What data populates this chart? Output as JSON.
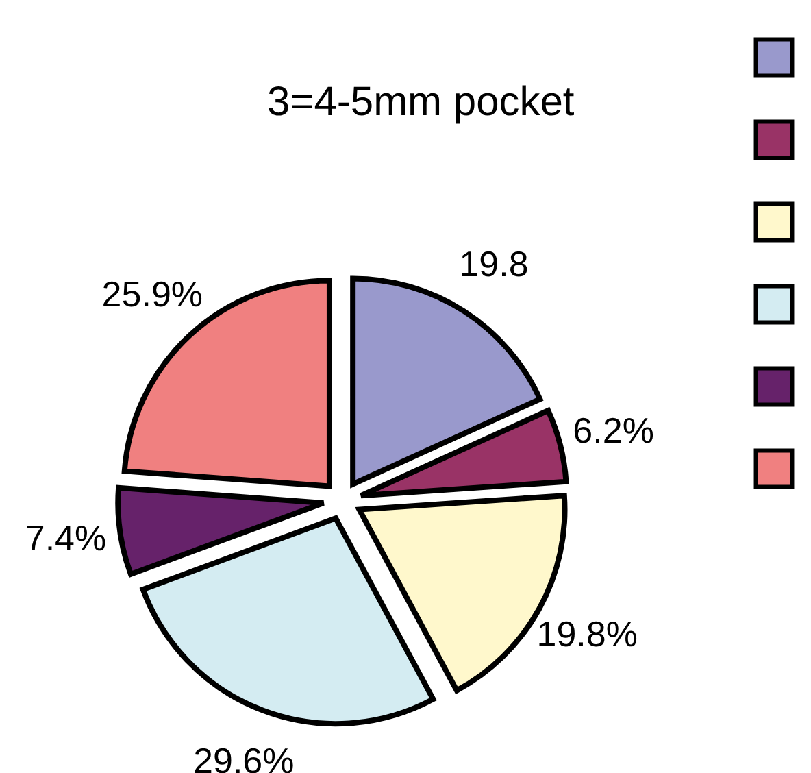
{
  "chart_data": {
    "type": "pie",
    "title": "3=4-5mm pocket",
    "categories": [
      null,
      null,
      null,
      null,
      null,
      null
    ],
    "values": [
      19.8,
      6.2,
      19.8,
      29.6,
      7.4,
      25.9
    ],
    "colors": [
      "#9999cc",
      "#993366",
      "#fff8cc",
      "#d4ecf2",
      "#66226a",
      "#f08080"
    ],
    "value_labels": [
      "19.8",
      "6.2%",
      "19.8%",
      "29.6%",
      "7.4%",
      "25.9%"
    ]
  }
}
